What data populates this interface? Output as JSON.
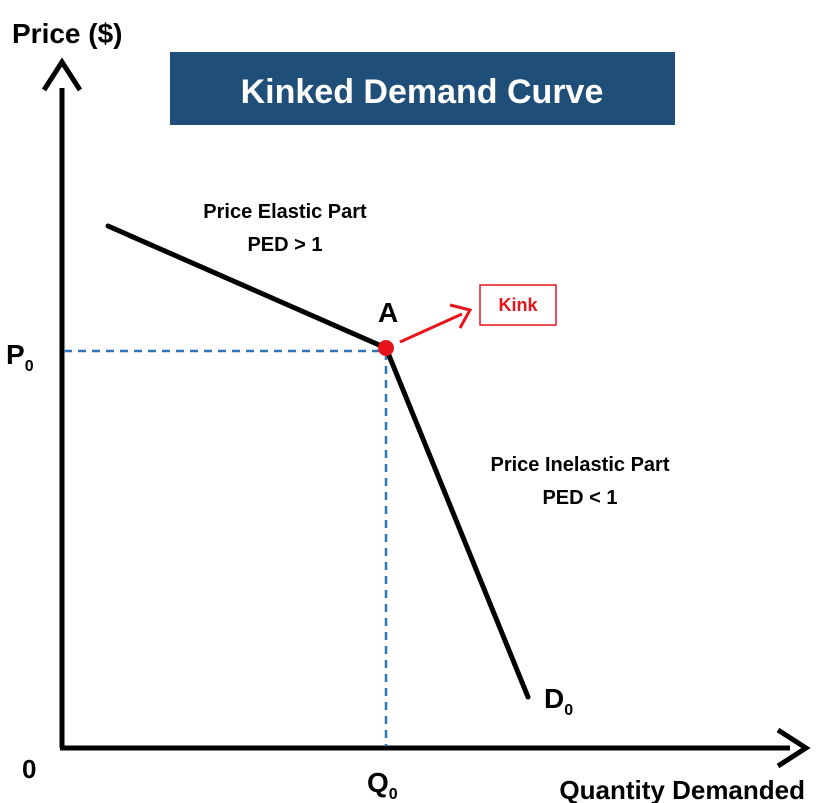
{
  "title": "Kinked Demand Curve",
  "y_axis_label": "Price ($)",
  "x_axis_label": "Quantity Demanded",
  "origin_label": "0",
  "price_label": {
    "main": "P",
    "sub": "0"
  },
  "quantity_label": {
    "main": "Q",
    "sub": "0"
  },
  "curve_label": {
    "main": "D",
    "sub": "0"
  },
  "point_label": "A",
  "kink_label": "Kink",
  "elastic_part": {
    "title": "Price Elastic Part",
    "condition": "PED > 1"
  },
  "inelastic_part": {
    "title": "Price Inelastic Part",
    "condition": "PED < 1"
  },
  "colors": {
    "banner": "#1F4E79",
    "banner_text": "#FFFFFF",
    "curve": "#000000",
    "kink": "#E8141B",
    "guide": "#2E75B6"
  }
}
